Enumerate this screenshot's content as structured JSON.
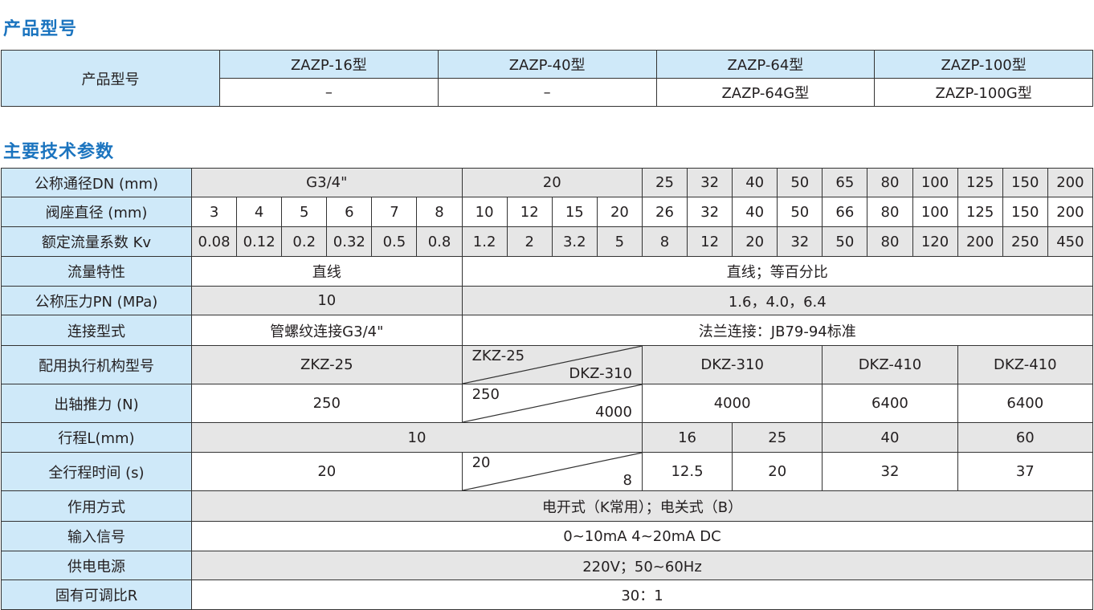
{
  "section1": {
    "title": "产品型号",
    "label": "产品型号",
    "models": [
      "ZAZP-16型",
      "ZAZP-40型",
      "ZAZP-64型",
      "ZAZP-100型"
    ],
    "variants": [
      "–",
      "–",
      "ZAZP-64G型",
      "ZAZP-100G型"
    ]
  },
  "section2": {
    "title": "主要技术参数",
    "rows": [
      {
        "label": "公称通径DN (mm)",
        "cells": [
          {
            "t": "G3/4\"",
            "s": 6
          },
          {
            "t": "20",
            "s": 4
          },
          {
            "t": "25"
          },
          {
            "t": "32"
          },
          {
            "t": "40"
          },
          {
            "t": "50"
          },
          {
            "t": "65"
          },
          {
            "t": "80"
          },
          {
            "t": "100"
          },
          {
            "t": "125"
          },
          {
            "t": "150"
          },
          {
            "t": "200"
          }
        ]
      },
      {
        "label": "阀座直径 (mm)",
        "cells": [
          {
            "t": "3"
          },
          {
            "t": "4"
          },
          {
            "t": "5"
          },
          {
            "t": "6"
          },
          {
            "t": "7"
          },
          {
            "t": "8"
          },
          {
            "t": "10"
          },
          {
            "t": "12"
          },
          {
            "t": "15"
          },
          {
            "t": "20"
          },
          {
            "t": "26"
          },
          {
            "t": "32"
          },
          {
            "t": "40"
          },
          {
            "t": "50"
          },
          {
            "t": "66"
          },
          {
            "t": "80"
          },
          {
            "t": "100"
          },
          {
            "t": "125"
          },
          {
            "t": "150"
          },
          {
            "t": "200"
          }
        ]
      },
      {
        "label": "额定流量系数 Kv",
        "cells": [
          {
            "t": "0.08"
          },
          {
            "t": "0.12"
          },
          {
            "t": "0.2"
          },
          {
            "t": "0.32"
          },
          {
            "t": "0.5"
          },
          {
            "t": "0.8"
          },
          {
            "t": "1.2"
          },
          {
            "t": "2"
          },
          {
            "t": "3.2"
          },
          {
            "t": "5"
          },
          {
            "t": "8"
          },
          {
            "t": "12"
          },
          {
            "t": "20"
          },
          {
            "t": "32"
          },
          {
            "t": "50"
          },
          {
            "t": "80"
          },
          {
            "t": "120"
          },
          {
            "t": "200"
          },
          {
            "t": "250"
          },
          {
            "t": "450"
          }
        ]
      },
      {
        "label": "流量特性",
        "cells": [
          {
            "t": "直线",
            "s": 6
          },
          {
            "t": "直线；等百分比",
            "s": 14
          }
        ]
      },
      {
        "label": "公称压力PN (MPa)",
        "cells": [
          {
            "t": "10",
            "s": 6
          },
          {
            "t": "1.6，4.0，6.4",
            "s": 14
          }
        ]
      },
      {
        "label": "连接型式",
        "cells": [
          {
            "t": "管螺纹连接G3/4\"",
            "s": 6
          },
          {
            "t": "法兰连接：JB79-94标准",
            "s": 14
          }
        ]
      },
      {
        "label": "配用执行机构型号",
        "cells": [
          {
            "t": "ZKZ-25",
            "s": 6
          },
          {
            "top": "ZKZ-25",
            "bottom": "DKZ-310",
            "s": 4
          },
          {
            "t": "DKZ-310",
            "s": 4
          },
          {
            "t": "DKZ-410",
            "s": 3
          },
          {
            "t": "DKZ-410",
            "s": 3
          }
        ]
      },
      {
        "label": "出轴推力 (N)",
        "cells": [
          {
            "t": "250",
            "s": 6
          },
          {
            "top": "250",
            "bottom": "4000",
            "s": 4
          },
          {
            "t": "4000",
            "s": 4
          },
          {
            "t": "6400",
            "s": 3
          },
          {
            "t": "6400",
            "s": 3
          }
        ]
      },
      {
        "label": "行程L(mm)",
        "cells": [
          {
            "t": "10",
            "s": 10
          },
          {
            "t": "16",
            "s": 2
          },
          {
            "t": "25",
            "s": 2
          },
          {
            "t": "40",
            "s": 3
          },
          {
            "t": "60",
            "s": 3
          }
        ]
      },
      {
        "label": "全行程时间 (s)",
        "cells": [
          {
            "t": "20",
            "s": 6
          },
          {
            "top": "20",
            "bottom": "8",
            "s": 4
          },
          {
            "t": "12.5",
            "s": 2
          },
          {
            "t": "20",
            "s": 2
          },
          {
            "t": "32",
            "s": 3
          },
          {
            "t": "37",
            "s": 3
          }
        ]
      },
      {
        "label": "作用方式",
        "cells": [
          {
            "t": "电开式（K常用）；电关式（B）",
            "s": 20
          }
        ]
      },
      {
        "label": "输入信号",
        "cells": [
          {
            "t": "0~10mA  4~20mA  DC",
            "s": 20
          }
        ]
      },
      {
        "label": "供电电源",
        "cells": [
          {
            "t": "220V；50~60Hz",
            "s": 20
          }
        ]
      },
      {
        "label": "固有可调比R",
        "cells": [
          {
            "t": "30：1",
            "s": 20
          }
        ]
      }
    ]
  },
  "colors": {
    "title": "#1b74bf",
    "label_bg": "#cfe9f9",
    "gray_row": "#e6e6e6"
  }
}
